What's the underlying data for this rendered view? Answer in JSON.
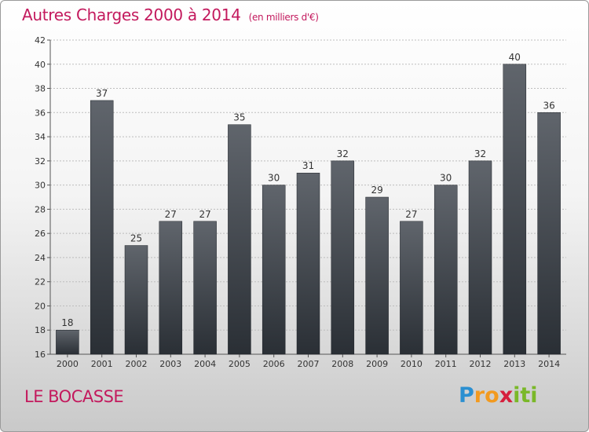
{
  "header": {
    "title": "Autres Charges 2000 à 2014",
    "subtitle": "(en milliers d'€)"
  },
  "footer": {
    "commune": "LE BOCASSE",
    "logo_letters": [
      "P",
      "r",
      "o",
      "x",
      "i",
      "t",
      "i"
    ],
    "logo_colors": [
      "#2a8fd1",
      "#f29a1f",
      "#f29a1f",
      "#d61f3c",
      "#7ab828",
      "#7ab828",
      "#7ab828"
    ]
  },
  "colors": {
    "title": "#c3195d",
    "bar_top": "#5f646b",
    "bar_bottom": "#2a2f35",
    "grid": "#bdbdbd",
    "axis": "#555555"
  },
  "chart_data": {
    "type": "bar",
    "categories": [
      "2000",
      "2001",
      "2002",
      "2003",
      "2004",
      "2005",
      "2006",
      "2007",
      "2008",
      "2009",
      "2010",
      "2011",
      "2012",
      "2013",
      "2014"
    ],
    "values": [
      18,
      37,
      25,
      27,
      27,
      35,
      30,
      31,
      32,
      29,
      27,
      30,
      32,
      40,
      36
    ],
    "ylim": [
      16,
      42
    ],
    "yticks": [
      16,
      18,
      20,
      22,
      24,
      26,
      28,
      30,
      32,
      34,
      36,
      38,
      40,
      42
    ],
    "grid": true,
    "title": "Autres Charges 2000 à 2014",
    "xlabel": "",
    "ylabel": ""
  }
}
